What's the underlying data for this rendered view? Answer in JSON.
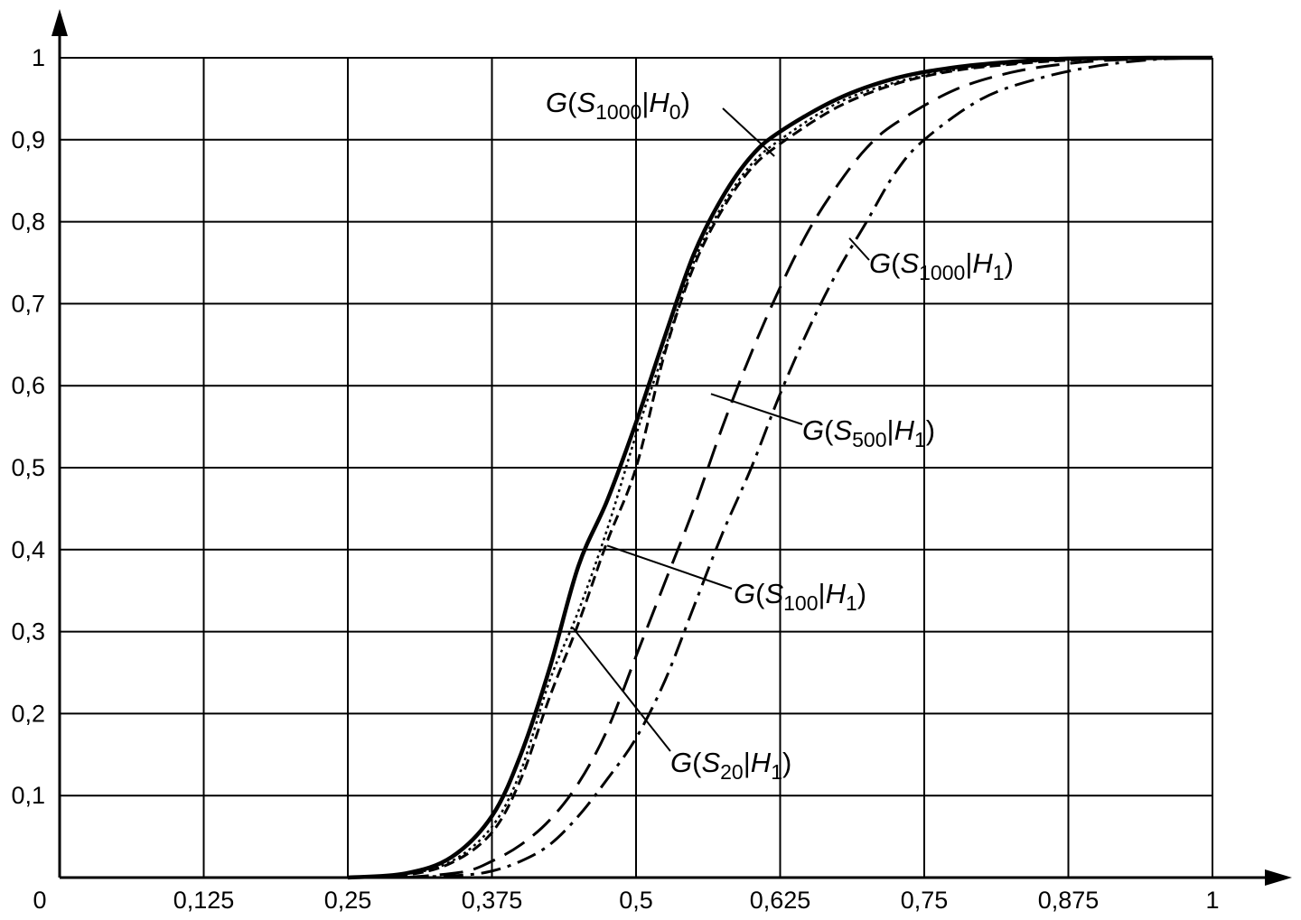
{
  "chart_data": {
    "type": "line",
    "title": "",
    "xlabel": "",
    "ylabel": "",
    "xlim": [
      0,
      1
    ],
    "ylim": [
      0,
      1
    ],
    "grid": true,
    "x_ticks": [
      "0",
      "0,125",
      "0,25",
      "0,375",
      "0,5",
      "0,625",
      "0,75",
      "0,875",
      "1"
    ],
    "y_ticks": [
      "0,1",
      "0,2",
      "0,3",
      "0,4",
      "0,5",
      "0,6",
      "0,7",
      "0,8",
      "0,9",
      "1"
    ],
    "series": [
      {
        "name": "G(S1000|H0)",
        "style": "solid",
        "label": {
          "g": "G",
          "s": "S",
          "sub": "1000",
          "h": "H",
          "hsub": "0"
        },
        "x": [
          0.25,
          0.3,
          0.34,
          0.375,
          0.4,
          0.425,
          0.45,
          0.475,
          0.5,
          0.525,
          0.55,
          0.575,
          0.6,
          0.625,
          0.675,
          0.725,
          0.775,
          0.825,
          0.875,
          0.95,
          1.0
        ],
        "y": [
          0.0,
          0.005,
          0.025,
          0.075,
          0.15,
          0.255,
          0.38,
          0.46,
          0.555,
          0.66,
          0.76,
          0.83,
          0.88,
          0.91,
          0.95,
          0.975,
          0.988,
          0.995,
          0.999,
          1.0,
          1.0
        ]
      },
      {
        "name": "G(S20|H1)",
        "style": "dotted",
        "label": {
          "g": "G",
          "s": "S",
          "sub": "20",
          "h": "H",
          "hsub": "1"
        },
        "x": [
          0.25,
          0.3,
          0.34,
          0.375,
          0.4,
          0.425,
          0.45,
          0.475,
          0.5,
          0.525,
          0.55,
          0.575,
          0.6,
          0.625,
          0.675,
          0.725,
          0.775,
          0.825,
          0.875,
          0.95,
          1.0
        ],
        "y": [
          0.0,
          0.004,
          0.02,
          0.062,
          0.13,
          0.24,
          0.325,
          0.425,
          0.54,
          0.645,
          0.75,
          0.82,
          0.87,
          0.9,
          0.945,
          0.97,
          0.985,
          0.993,
          0.998,
          1.0,
          1.0
        ]
      },
      {
        "name": "G(S100|H1)",
        "style": "short-dash",
        "label": {
          "g": "G",
          "s": "S",
          "sub": "100",
          "h": "H",
          "hsub": "1"
        },
        "x": [
          0.25,
          0.3,
          0.34,
          0.375,
          0.4,
          0.425,
          0.45,
          0.475,
          0.5,
          0.525,
          0.55,
          0.575,
          0.6,
          0.625,
          0.675,
          0.725,
          0.775,
          0.825,
          0.875,
          0.95,
          1.0
        ],
        "y": [
          0.0,
          0.003,
          0.018,
          0.055,
          0.12,
          0.22,
          0.31,
          0.41,
          0.5,
          0.64,
          0.745,
          0.815,
          0.865,
          0.895,
          0.94,
          0.968,
          0.984,
          0.992,
          0.997,
          1.0,
          1.0
        ]
      },
      {
        "name": "G(S500|H1)",
        "style": "long-dash",
        "label": {
          "g": "G",
          "s": "S",
          "sub": "500",
          "h": "H",
          "hsub": "1"
        },
        "x": [
          0.3,
          0.35,
          0.375,
          0.4,
          0.425,
          0.45,
          0.475,
          0.5,
          0.525,
          0.55,
          0.575,
          0.6,
          0.625,
          0.65,
          0.675,
          0.7,
          0.725,
          0.775,
          0.825,
          0.875,
          0.925,
          1.0
        ],
        "y": [
          0.0,
          0.007,
          0.02,
          0.04,
          0.07,
          0.115,
          0.18,
          0.27,
          0.36,
          0.45,
          0.55,
          0.64,
          0.72,
          0.79,
          0.845,
          0.89,
          0.92,
          0.96,
          0.982,
          0.993,
          0.998,
          1.0
        ]
      },
      {
        "name": "G(S1000|H1)",
        "style": "dash-dot",
        "label": {
          "g": "G",
          "s": "S",
          "sub": "1000",
          "h": "H",
          "hsub": "1"
        },
        "x": [
          0.3,
          0.35,
          0.375,
          0.4,
          0.425,
          0.45,
          0.475,
          0.5,
          0.525,
          0.55,
          0.575,
          0.6,
          0.625,
          0.65,
          0.675,
          0.7,
          0.725,
          0.75,
          0.8,
          0.85,
          0.9,
          0.95,
          1.0
        ],
        "y": [
          0.0,
          0.003,
          0.008,
          0.02,
          0.04,
          0.075,
          0.12,
          0.17,
          0.24,
          0.33,
          0.42,
          0.5,
          0.59,
          0.67,
          0.74,
          0.8,
          0.86,
          0.9,
          0.95,
          0.975,
          0.99,
          0.998,
          1.0
        ]
      }
    ],
    "annotations": [
      {
        "series": "G(S1000|H0)",
        "text": "G(S1000|H0)",
        "at_x": 0.62,
        "at_y": 0.88
      },
      {
        "series": "G(S1000|H1)",
        "text": "G(S1000|H1)",
        "at_x": 0.685,
        "at_y": 0.78
      },
      {
        "series": "G(S500|H1)",
        "text": "G(S500|H1)",
        "at_x": 0.565,
        "at_y": 0.59
      },
      {
        "series": "G(S100|H1)",
        "text": "G(S100|H1)",
        "at_x": 0.475,
        "at_y": 0.405
      },
      {
        "series": "G(S20|H1)",
        "text": "G(S20|H1)",
        "at_x": 0.445,
        "at_y": 0.305
      }
    ]
  }
}
